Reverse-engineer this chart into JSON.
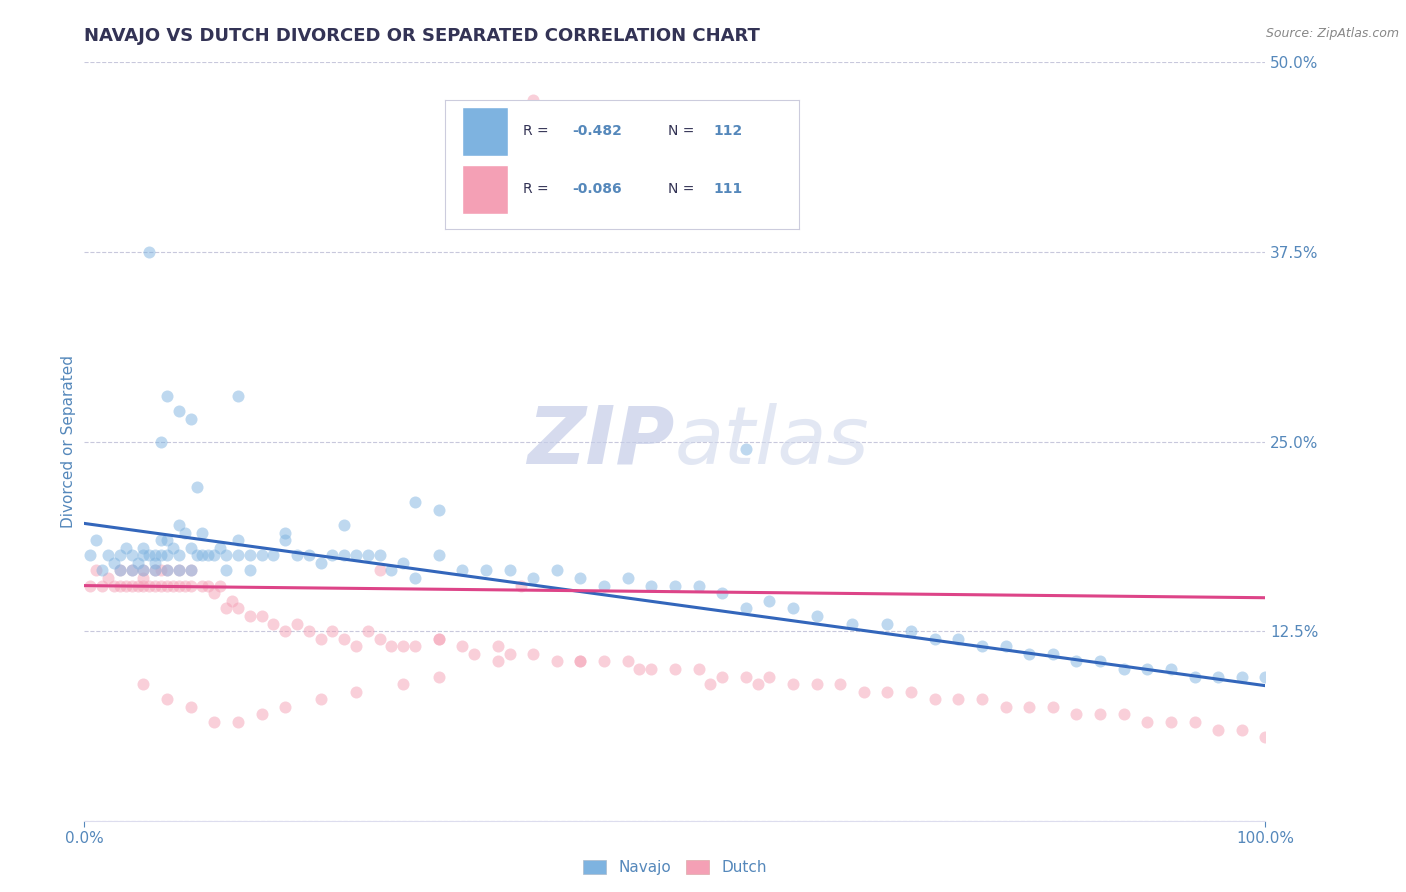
{
  "title": "NAVAJO VS DUTCH DIVORCED OR SEPARATED CORRELATION CHART",
  "source": "Source: ZipAtlas.com",
  "ylabel": "Divorced or Separated",
  "navajo_color": "#7EB3E0",
  "dutch_color": "#F4A0B5",
  "navajo_line_color": "#3366BB",
  "dutch_line_color": "#DD4488",
  "background_color": "#ffffff",
  "grid_color": "#C8C8DC",
  "title_color": "#333355",
  "axis_label_color": "#5588BB",
  "watermark_color": "#D8DCF0",
  "xlim": [
    0.0,
    1.0
  ],
  "ylim": [
    0.0,
    0.5
  ],
  "yticks": [
    0.0,
    0.125,
    0.25,
    0.375,
    0.5
  ],
  "ytick_labels": [
    "",
    "12.5%",
    "25.0%",
    "37.5%",
    "50.0%"
  ],
  "xticks": [
    0.0,
    1.0
  ],
  "xtick_labels": [
    "0.0%",
    "100.0%"
  ],
  "navajo_r": "-0.482",
  "navajo_n": "112",
  "dutch_r": "-0.086",
  "dutch_n": "111",
  "navajo_x": [
    0.005,
    0.01,
    0.015,
    0.02,
    0.025,
    0.03,
    0.03,
    0.035,
    0.04,
    0.04,
    0.045,
    0.05,
    0.05,
    0.05,
    0.055,
    0.06,
    0.06,
    0.06,
    0.065,
    0.065,
    0.07,
    0.07,
    0.07,
    0.075,
    0.08,
    0.08,
    0.08,
    0.085,
    0.09,
    0.09,
    0.095,
    0.1,
    0.1,
    0.105,
    0.11,
    0.115,
    0.12,
    0.12,
    0.13,
    0.13,
    0.14,
    0.14,
    0.15,
    0.16,
    0.17,
    0.18,
    0.19,
    0.2,
    0.21,
    0.22,
    0.23,
    0.24,
    0.25,
    0.26,
    0.27,
    0.28,
    0.3,
    0.32,
    0.34,
    0.36,
    0.38,
    0.4,
    0.42,
    0.44,
    0.46,
    0.48,
    0.5,
    0.52,
    0.54,
    0.56,
    0.58,
    0.6,
    0.62,
    0.65,
    0.68,
    0.7,
    0.72,
    0.74,
    0.76,
    0.78,
    0.8,
    0.82,
    0.84,
    0.86,
    0.88,
    0.9,
    0.92,
    0.94,
    0.96,
    0.98,
    1.0,
    0.055,
    0.56,
    0.13,
    0.08,
    0.065,
    0.07,
    0.09,
    0.095,
    0.28,
    0.3,
    0.22,
    0.17
  ],
  "navajo_y": [
    0.175,
    0.185,
    0.165,
    0.175,
    0.17,
    0.165,
    0.175,
    0.18,
    0.175,
    0.165,
    0.17,
    0.175,
    0.165,
    0.18,
    0.175,
    0.175,
    0.165,
    0.17,
    0.185,
    0.175,
    0.185,
    0.175,
    0.165,
    0.18,
    0.195,
    0.175,
    0.165,
    0.19,
    0.18,
    0.165,
    0.175,
    0.175,
    0.19,
    0.175,
    0.175,
    0.18,
    0.175,
    0.165,
    0.185,
    0.175,
    0.175,
    0.165,
    0.175,
    0.175,
    0.185,
    0.175,
    0.175,
    0.17,
    0.175,
    0.175,
    0.175,
    0.175,
    0.175,
    0.165,
    0.17,
    0.16,
    0.175,
    0.165,
    0.165,
    0.165,
    0.16,
    0.165,
    0.16,
    0.155,
    0.16,
    0.155,
    0.155,
    0.155,
    0.15,
    0.14,
    0.145,
    0.14,
    0.135,
    0.13,
    0.13,
    0.125,
    0.12,
    0.12,
    0.115,
    0.115,
    0.11,
    0.11,
    0.105,
    0.105,
    0.1,
    0.1,
    0.1,
    0.095,
    0.095,
    0.095,
    0.095,
    0.375,
    0.245,
    0.28,
    0.27,
    0.25,
    0.28,
    0.265,
    0.22,
    0.21,
    0.205,
    0.195,
    0.19
  ],
  "dutch_x": [
    0.005,
    0.01,
    0.015,
    0.02,
    0.025,
    0.03,
    0.03,
    0.035,
    0.04,
    0.04,
    0.045,
    0.05,
    0.05,
    0.05,
    0.055,
    0.06,
    0.06,
    0.065,
    0.065,
    0.07,
    0.07,
    0.075,
    0.08,
    0.08,
    0.085,
    0.09,
    0.09,
    0.1,
    0.105,
    0.11,
    0.115,
    0.12,
    0.125,
    0.13,
    0.14,
    0.15,
    0.16,
    0.17,
    0.18,
    0.19,
    0.2,
    0.21,
    0.22,
    0.23,
    0.24,
    0.25,
    0.26,
    0.27,
    0.28,
    0.3,
    0.32,
    0.33,
    0.35,
    0.36,
    0.38,
    0.4,
    0.42,
    0.44,
    0.46,
    0.48,
    0.5,
    0.52,
    0.54,
    0.56,
    0.58,
    0.6,
    0.62,
    0.64,
    0.66,
    0.68,
    0.7,
    0.72,
    0.74,
    0.76,
    0.78,
    0.8,
    0.82,
    0.84,
    0.86,
    0.88,
    0.9,
    0.92,
    0.94,
    0.96,
    0.98,
    1.0,
    0.37,
    0.25,
    0.3,
    0.35,
    0.42,
    0.47,
    0.53,
    0.57,
    0.3,
    0.27,
    0.23,
    0.2,
    0.17,
    0.15,
    0.13,
    0.11,
    0.09,
    0.07,
    0.05,
    0.38
  ],
  "dutch_y": [
    0.155,
    0.165,
    0.155,
    0.16,
    0.155,
    0.155,
    0.165,
    0.155,
    0.155,
    0.165,
    0.155,
    0.155,
    0.16,
    0.165,
    0.155,
    0.155,
    0.165,
    0.155,
    0.165,
    0.155,
    0.165,
    0.155,
    0.155,
    0.165,
    0.155,
    0.155,
    0.165,
    0.155,
    0.155,
    0.15,
    0.155,
    0.14,
    0.145,
    0.14,
    0.135,
    0.135,
    0.13,
    0.125,
    0.13,
    0.125,
    0.12,
    0.125,
    0.12,
    0.115,
    0.125,
    0.12,
    0.115,
    0.115,
    0.115,
    0.12,
    0.115,
    0.11,
    0.115,
    0.11,
    0.11,
    0.105,
    0.105,
    0.105,
    0.105,
    0.1,
    0.1,
    0.1,
    0.095,
    0.095,
    0.095,
    0.09,
    0.09,
    0.09,
    0.085,
    0.085,
    0.085,
    0.08,
    0.08,
    0.08,
    0.075,
    0.075,
    0.075,
    0.07,
    0.07,
    0.07,
    0.065,
    0.065,
    0.065,
    0.06,
    0.06,
    0.055,
    0.155,
    0.165,
    0.12,
    0.105,
    0.105,
    0.1,
    0.09,
    0.09,
    0.095,
    0.09,
    0.085,
    0.08,
    0.075,
    0.07,
    0.065,
    0.065,
    0.075,
    0.08,
    0.09,
    0.475
  ],
  "navajo_intercept": 0.196,
  "navajo_slope": -0.107,
  "dutch_intercept": 0.155,
  "dutch_slope": -0.008,
  "marker_size": 75,
  "marker_alpha": 0.5,
  "line_width": 2.2,
  "title_fontsize": 13,
  "axis_label_fontsize": 11,
  "tick_fontsize": 11,
  "legend_fontsize": 11,
  "source_fontsize": 9
}
